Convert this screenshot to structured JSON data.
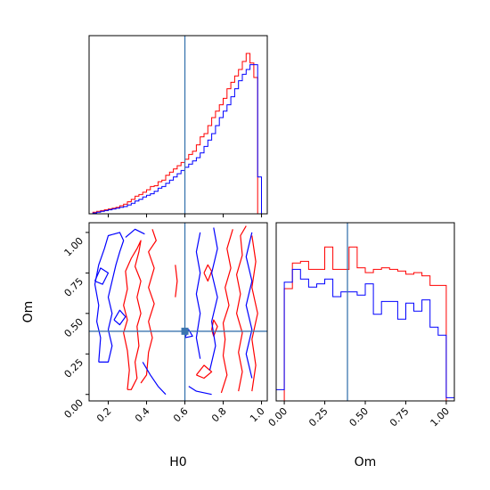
{
  "chart_data": {
    "type": "corner",
    "colors": {
      "series_a": "#ff0000",
      "series_b": "#0000ff",
      "truth": "#3b75af"
    },
    "parameters": [
      "H0",
      "Om"
    ],
    "truth": {
      "H0": 0.6,
      "Om": 0.39
    },
    "xlabels": {
      "H0": "H0",
      "Om": "Om"
    },
    "ylabels": {
      "Om": "Om"
    },
    "ticks": {
      "H0": [
        "0.2",
        "0.4",
        "0.6",
        "0.8",
        "1.0"
      ],
      "Om_y": [
        "0.00",
        "0.25",
        "0.50",
        "0.75",
        "1.00"
      ],
      "Om_x": [
        "0.00",
        "0.25",
        "0.50",
        "0.75",
        "1.00"
      ]
    },
    "charts": [
      {
        "panel": "H0 marginal",
        "type": "step-histogram",
        "xlim": [
          0.1,
          1.03
        ],
        "bin_edges": [
          0.1,
          0.12,
          0.14,
          0.16,
          0.18,
          0.2,
          0.22,
          0.24,
          0.26,
          0.28,
          0.3,
          0.32,
          0.34,
          0.36,
          0.38,
          0.4,
          0.42,
          0.44,
          0.46,
          0.48,
          0.5,
          0.52,
          0.54,
          0.56,
          0.58,
          0.6,
          0.62,
          0.64,
          0.66,
          0.68,
          0.7,
          0.72,
          0.74,
          0.76,
          0.78,
          0.8,
          0.82,
          0.84,
          0.86,
          0.88,
          0.9,
          0.92,
          0.94,
          0.96,
          0.98,
          1.0
        ],
        "series": [
          {
            "color": "#ff0000",
            "values": [
              0.0,
              0.01,
              0.015,
              0.02,
              0.025,
              0.03,
              0.035,
              0.04,
              0.05,
              0.06,
              0.075,
              0.09,
              0.11,
              0.12,
              0.135,
              0.15,
              0.17,
              0.175,
              0.2,
              0.21,
              0.24,
              0.26,
              0.28,
              0.3,
              0.32,
              0.34,
              0.37,
              0.39,
              0.43,
              0.48,
              0.5,
              0.55,
              0.6,
              0.64,
              0.68,
              0.72,
              0.78,
              0.82,
              0.86,
              0.9,
              0.95,
              1.0,
              0.94,
              0.85,
              0.0
            ]
          },
          {
            "color": "#0000ff",
            "values": [
              0.0,
              0.005,
              0.01,
              0.015,
              0.02,
              0.025,
              0.03,
              0.035,
              0.04,
              0.045,
              0.055,
              0.065,
              0.08,
              0.09,
              0.105,
              0.115,
              0.125,
              0.14,
              0.16,
              0.17,
              0.19,
              0.21,
              0.23,
              0.25,
              0.27,
              0.29,
              0.31,
              0.33,
              0.35,
              0.38,
              0.42,
              0.46,
              0.5,
              0.55,
              0.6,
              0.64,
              0.68,
              0.73,
              0.78,
              0.83,
              0.87,
              0.9,
              0.93,
              0.93,
              0.23
            ]
          }
        ]
      },
      {
        "panel": "Om marginal",
        "type": "step-histogram",
        "xlim": [
          -0.05,
          1.05
        ],
        "bin_edges": [
          -0.05,
          0.0,
          0.05,
          0.1,
          0.15,
          0.2,
          0.25,
          0.3,
          0.35,
          0.4,
          0.45,
          0.5,
          0.55,
          0.6,
          0.65,
          0.7,
          0.75,
          0.8,
          0.85,
          0.9,
          0.95,
          1.0,
          1.05
        ],
        "series": [
          {
            "color": "#ff0000",
            "values": [
              0.0,
              0.7,
              0.86,
              0.87,
              0.82,
              0.82,
              0.96,
              0.82,
              0.82,
              0.96,
              0.83,
              0.8,
              0.82,
              0.83,
              0.82,
              0.81,
              0.79,
              0.8,
              0.78,
              0.72,
              0.72,
              0.0
            ]
          },
          {
            "color": "#0000ff",
            "values": [
              0.07,
              0.74,
              0.82,
              0.76,
              0.71,
              0.73,
              0.76,
              0.65,
              0.68,
              0.68,
              0.66,
              0.73,
              0.54,
              0.62,
              0.62,
              0.51,
              0.61,
              0.56,
              0.63,
              0.46,
              0.41,
              0.02
            ]
          }
        ]
      },
      {
        "panel": "H0 vs Om joint",
        "type": "contour",
        "xlim": [
          0.1,
          1.03
        ],
        "ylim": [
          -0.04,
          1.06
        ],
        "series": [
          {
            "color": "#ff0000",
            "contours": [
              [
                [
                  0.3,
                  0.03
                ],
                [
                  0.31,
                  0.15
                ],
                [
                  0.3,
                  0.27
                ],
                [
                  0.28,
                  0.38
                ],
                [
                  0.3,
                  0.46
                ],
                [
                  0.28,
                  0.55
                ],
                [
                  0.3,
                  0.65
                ],
                [
                  0.29,
                  0.76
                ],
                [
                  0.32,
                  0.84
                ],
                [
                  0.35,
                  0.9
                ],
                [
                  0.37,
                  0.95
                ],
                [
                  0.36,
                  0.88
                ],
                [
                  0.34,
                  0.79
                ],
                [
                  0.37,
                  0.7
                ],
                [
                  0.35,
                  0.6
                ],
                [
                  0.37,
                  0.5
                ],
                [
                  0.35,
                  0.42
                ],
                [
                  0.36,
                  0.3
                ],
                [
                  0.34,
                  0.2
                ],
                [
                  0.35,
                  0.1
                ],
                [
                  0.32,
                  0.03
                ],
                [
                  0.3,
                  0.03
                ]
              ],
              [
                [
                  0.37,
                  0.07
                ],
                [
                  0.4,
                  0.12
                ],
                [
                  0.41,
                  0.26
                ],
                [
                  0.43,
                  0.35
                ],
                [
                  0.41,
                  0.45
                ],
                [
                  0.44,
                  0.56
                ],
                [
                  0.41,
                  0.66
                ],
                [
                  0.44,
                  0.78
                ],
                [
                  0.41,
                  0.88
                ],
                [
                  0.45,
                  0.95
                ],
                [
                  0.43,
                  1.02
                ]
              ],
              [
                [
                  0.55,
                  0.6
                ],
                [
                  0.56,
                  0.7
                ],
                [
                  0.55,
                  0.8
                ]
              ],
              [
                [
                  0.79,
                  0.01
                ],
                [
                  0.82,
                  0.12
                ],
                [
                  0.8,
                  0.24
                ],
                [
                  0.81,
                  0.34
                ],
                [
                  0.8,
                  0.44
                ],
                [
                  0.83,
                  0.55
                ],
                [
                  0.81,
                  0.66
                ],
                [
                  0.84,
                  0.78
                ],
                [
                  0.82,
                  0.9
                ],
                [
                  0.85,
                  1.02
                ]
              ],
              [
                [
                  0.88,
                  0.02
                ],
                [
                  0.9,
                  0.14
                ],
                [
                  0.88,
                  0.26
                ],
                [
                  0.9,
                  0.38
                ],
                [
                  0.87,
                  0.5
                ],
                [
                  0.89,
                  0.62
                ],
                [
                  0.87,
                  0.74
                ],
                [
                  0.9,
                  0.86
                ],
                [
                  0.89,
                  0.98
                ],
                [
                  0.92,
                  1.04
                ]
              ],
              [
                [
                  0.95,
                  0.02
                ],
                [
                  0.97,
                  0.18
                ],
                [
                  0.95,
                  0.34
                ],
                [
                  0.98,
                  0.5
                ],
                [
                  0.95,
                  0.66
                ],
                [
                  0.97,
                  0.82
                ],
                [
                  0.95,
                  0.98
                ]
              ],
              [
                [
                  0.7,
                  0.75
                ],
                [
                  0.72,
                  0.8
                ],
                [
                  0.74,
                  0.76
                ],
                [
                  0.72,
                  0.7
                ],
                [
                  0.7,
                  0.75
                ]
              ],
              [
                [
                  0.74,
                  0.4
                ],
                [
                  0.75,
                  0.46
                ],
                [
                  0.77,
                  0.42
                ],
                [
                  0.75,
                  0.36
                ],
                [
                  0.74,
                  0.4
                ]
              ],
              [
                [
                  0.66,
                  0.12
                ],
                [
                  0.7,
                  0.18
                ],
                [
                  0.74,
                  0.14
                ],
                [
                  0.7,
                  0.1
                ],
                [
                  0.66,
                  0.12
                ]
              ]
            ]
          },
          {
            "color": "#0000ff",
            "contours": [
              [
                [
                  0.15,
                  0.2
                ],
                [
                  0.16,
                  0.35
                ],
                [
                  0.14,
                  0.45
                ],
                [
                  0.15,
                  0.55
                ],
                [
                  0.13,
                  0.68
                ],
                [
                  0.15,
                  0.8
                ],
                [
                  0.18,
                  0.9
                ],
                [
                  0.2,
                  0.98
                ],
                [
                  0.26,
                  1.0
                ],
                [
                  0.28,
                  0.95
                ],
                [
                  0.26,
                  0.88
                ],
                [
                  0.24,
                  0.8
                ],
                [
                  0.22,
                  0.7
                ],
                [
                  0.2,
                  0.6
                ],
                [
                  0.22,
                  0.5
                ],
                [
                  0.2,
                  0.4
                ],
                [
                  0.22,
                  0.3
                ],
                [
                  0.2,
                  0.2
                ],
                [
                  0.15,
                  0.2
                ]
              ],
              [
                [
                  0.13,
                  0.7
                ],
                [
                  0.16,
                  0.78
                ],
                [
                  0.2,
                  0.75
                ],
                [
                  0.17,
                  0.68
                ],
                [
                  0.13,
                  0.7
                ]
              ],
              [
                [
                  0.23,
                  0.46
                ],
                [
                  0.26,
                  0.52
                ],
                [
                  0.29,
                  0.48
                ],
                [
                  0.26,
                  0.43
                ],
                [
                  0.23,
                  0.46
                ]
              ],
              [
                [
                  0.38,
                  0.2
                ],
                [
                  0.42,
                  0.12
                ],
                [
                  0.46,
                  0.05
                ],
                [
                  0.5,
                  0.0
                ]
              ],
              [
                [
                  0.62,
                  0.05
                ],
                [
                  0.66,
                  0.02
                ],
                [
                  0.74,
                  0.0
                ]
              ],
              [
                [
                  0.68,
                  0.22
                ],
                [
                  0.66,
                  0.35
                ],
                [
                  0.68,
                  0.5
                ],
                [
                  0.66,
                  0.62
                ],
                [
                  0.68,
                  0.75
                ],
                [
                  0.66,
                  0.88
                ],
                [
                  0.68,
                  1.0
                ]
              ],
              [
                [
                  0.73,
                  0.15
                ],
                [
                  0.76,
                  0.3
                ],
                [
                  0.74,
                  0.45
                ],
                [
                  0.77,
                  0.6
                ],
                [
                  0.74,
                  0.75
                ],
                [
                  0.77,
                  0.9
                ],
                [
                  0.75,
                  1.03
                ]
              ],
              [
                [
                  0.95,
                  0.1
                ],
                [
                  0.92,
                  0.25
                ],
                [
                  0.95,
                  0.4
                ],
                [
                  0.92,
                  0.55
                ],
                [
                  0.95,
                  0.7
                ],
                [
                  0.92,
                  0.85
                ],
                [
                  0.95,
                  1.0
                ]
              ],
              [
                [
                  0.6,
                  0.35
                ],
                [
                  0.62,
                  0.4
                ],
                [
                  0.64,
                  0.36
                ],
                [
                  0.6,
                  0.35
                ]
              ],
              [
                [
                  0.29,
                  0.97
                ],
                [
                  0.34,
                  1.02
                ],
                [
                  0.39,
                  0.99
                ]
              ]
            ]
          }
        ]
      }
    ]
  }
}
